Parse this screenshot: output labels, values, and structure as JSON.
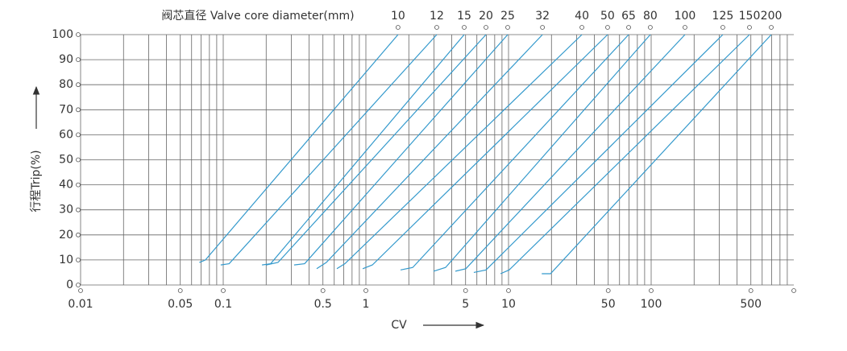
{
  "chart_data": {
    "type": "line",
    "title": "阀芯直径 Valve core diameter(mm)",
    "x_label": "CV",
    "y_label": "行程Trip(%)",
    "x_scale": "log",
    "xlim": [
      0.01,
      1000
    ],
    "ylim": [
      0,
      100
    ],
    "xticks": [
      0.01,
      0.05,
      0.1,
      0.5,
      1,
      5,
      10,
      50,
      100,
      500
    ],
    "yticks": [
      0,
      10,
      20,
      30,
      40,
      50,
      60,
      70,
      80,
      90,
      100
    ],
    "xgrid": [
      0.02,
      0.03,
      0.04,
      0.05,
      0.06,
      0.07,
      0.08,
      0.09,
      0.1,
      0.2,
      0.3,
      0.4,
      0.5,
      0.6,
      0.7,
      0.8,
      0.9,
      1,
      2,
      3,
      4,
      5,
      6,
      7,
      8,
      9,
      10,
      20,
      30,
      40,
      50,
      60,
      70,
      80,
      90,
      100,
      200,
      300,
      400,
      500,
      600,
      700,
      800,
      900
    ],
    "grid": true,
    "line_color": "#3399cc",
    "series": [
      {
        "name": "10",
        "x": [
          0.068,
          0.075,
          1.68
        ],
        "values": [
          9,
          10,
          100
        ]
      },
      {
        "name": "12",
        "x": [
          0.096,
          0.11,
          3.14
        ],
        "values": [
          8,
          8.5,
          100
        ]
      },
      {
        "name": "15",
        "x": [
          0.187,
          0.215,
          4.89
        ],
        "values": [
          8,
          8.5,
          100
        ]
      },
      {
        "name": "20",
        "x": [
          0.2,
          0.242,
          6.95
        ],
        "values": [
          8,
          9,
          100
        ]
      },
      {
        "name": "25",
        "x": [
          0.314,
          0.372,
          9.87
        ],
        "values": [
          8,
          8.5,
          100
        ]
      },
      {
        "name": "32",
        "x": [
          0.452,
          0.528,
          17.3
        ],
        "values": [
          6.5,
          9,
          100
        ]
      },
      {
        "name": "40",
        "x": [
          0.626,
          0.713,
          32.7
        ],
        "values": [
          6.5,
          8.5,
          100
        ]
      },
      {
        "name": "50",
        "x": [
          0.95,
          1.11,
          49.5
        ],
        "values": [
          6.5,
          8,
          100
        ]
      },
      {
        "name": "65",
        "x": [
          1.75,
          2.13,
          69.5
        ],
        "values": [
          6,
          7,
          100
        ]
      },
      {
        "name": "80",
        "x": [
          2.98,
          3.62,
          98.6
        ],
        "values": [
          5.5,
          7,
          100
        ]
      },
      {
        "name": "100",
        "x": [
          4.24,
          5.02,
          172.6
        ],
        "values": [
          5.5,
          6.5,
          100
        ]
      },
      {
        "name": "125",
        "x": [
          5.71,
          6.95,
          318
        ],
        "values": [
          5,
          6,
          100
        ]
      },
      {
        "name": "150",
        "x": [
          8.79,
          10.1,
          489
        ],
        "values": [
          4.5,
          6,
          100
        ]
      },
      {
        "name": "200",
        "x": [
          17.1,
          19.7,
          695
        ],
        "values": [
          4.5,
          4.5,
          100
        ]
      }
    ]
  }
}
